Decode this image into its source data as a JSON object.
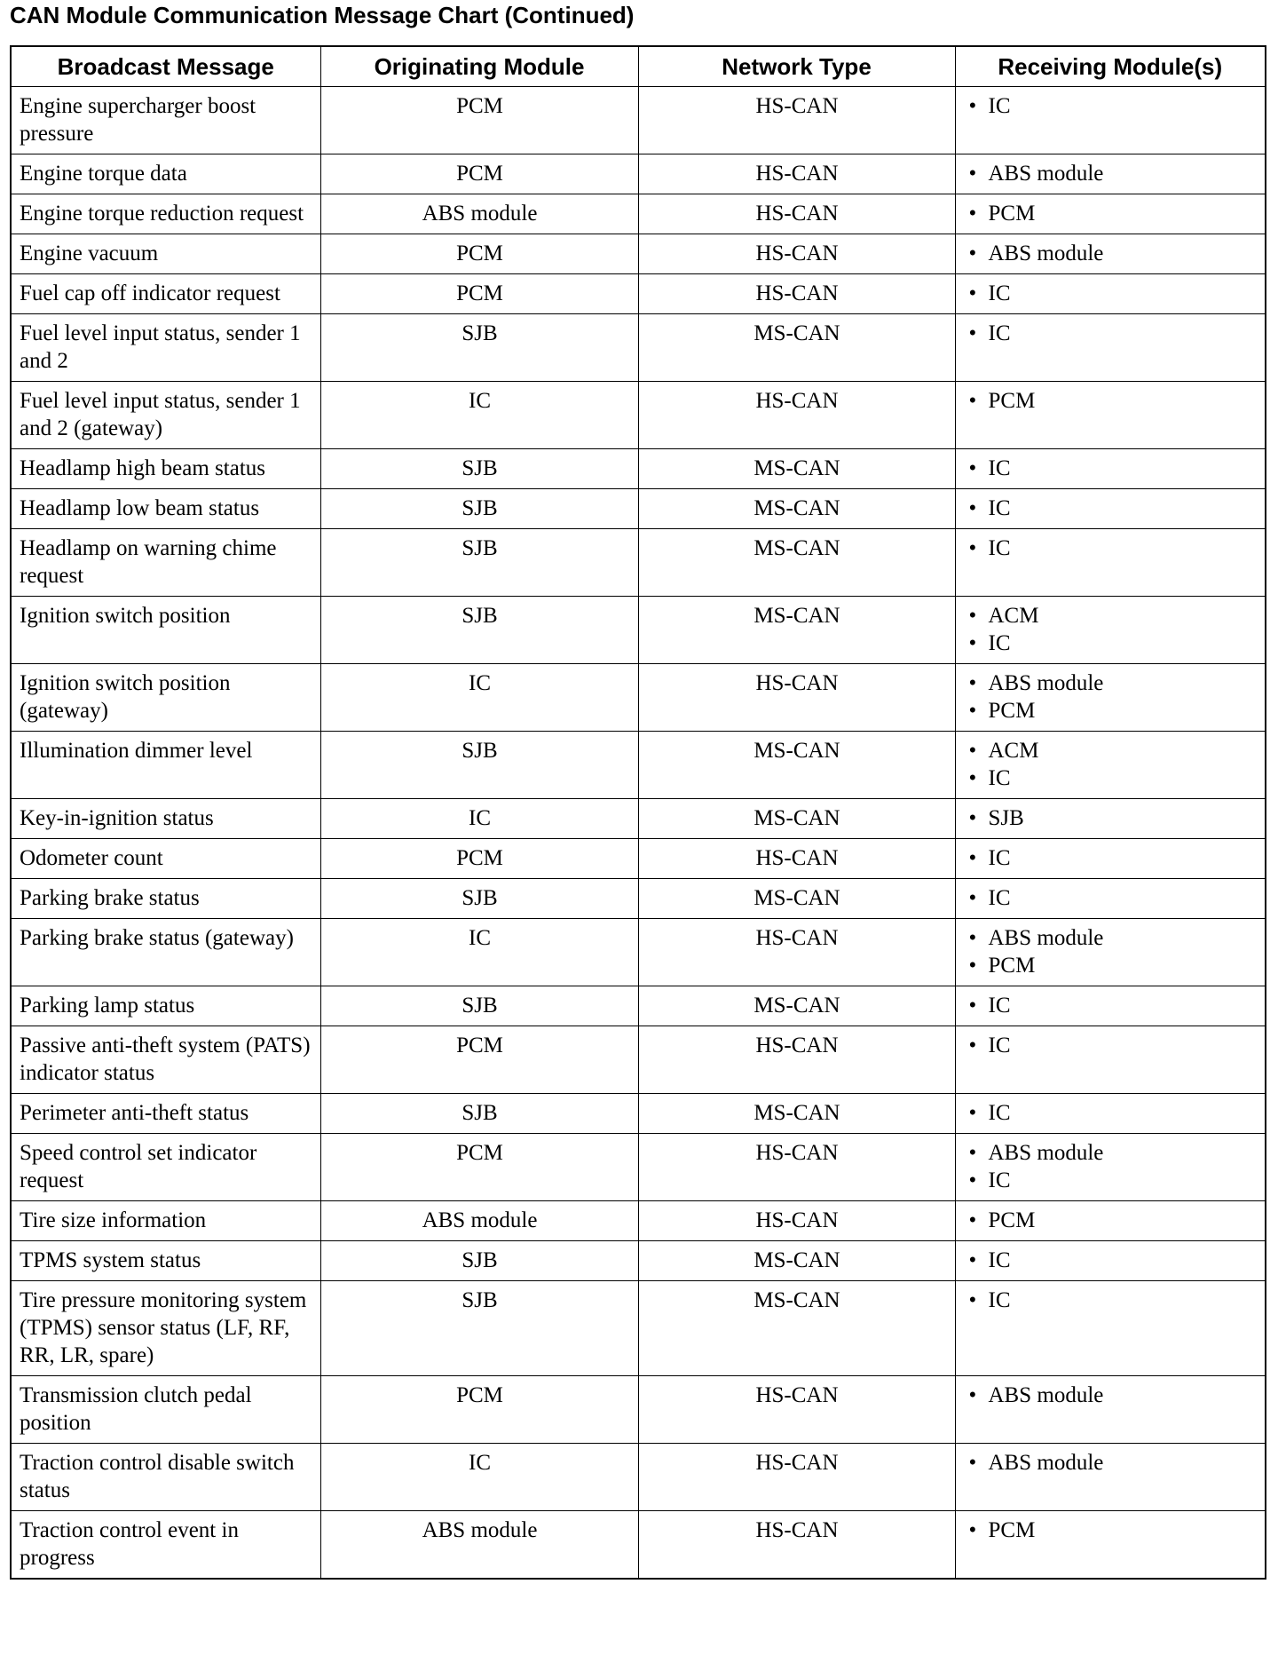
{
  "title": "CAN Module Communication Message Chart (Continued)",
  "table": {
    "header": [
      "Broadcast Message",
      "Originating Module",
      "Network Type",
      "Receiving Module(s)"
    ],
    "rows": [
      [
        "Engine supercharger boost pressure",
        "PCM",
        "HS-CAN",
        [
          "IC"
        ]
      ],
      [
        "Engine torque data",
        "PCM",
        "HS-CAN",
        [
          "ABS module"
        ]
      ],
      [
        "Engine torque reduction request",
        "ABS module",
        "HS-CAN",
        [
          "PCM"
        ]
      ],
      [
        "Engine vacuum",
        "PCM",
        "HS-CAN",
        [
          "ABS module"
        ]
      ],
      [
        "Fuel cap off indicator request",
        "PCM",
        "HS-CAN",
        [
          "IC"
        ]
      ],
      [
        "Fuel level input status, sender 1 and 2",
        "SJB",
        "MS-CAN",
        [
          "IC"
        ]
      ],
      [
        "Fuel level input status, sender 1 and 2 (gateway)",
        "IC",
        "HS-CAN",
        [
          "PCM"
        ]
      ],
      [
        "Headlamp high beam status",
        "SJB",
        "MS-CAN",
        [
          "IC"
        ]
      ],
      [
        "Headlamp low beam status",
        "SJB",
        "MS-CAN",
        [
          "IC"
        ]
      ],
      [
        "Headlamp on warning chime request",
        "SJB",
        "MS-CAN",
        [
          "IC"
        ]
      ],
      [
        "Ignition switch position",
        "SJB",
        "MS-CAN",
        [
          "ACM",
          "IC"
        ]
      ],
      [
        "Ignition switch position (gateway)",
        "IC",
        "HS-CAN",
        [
          "ABS module",
          "PCM"
        ]
      ],
      [
        "Illumination dimmer level",
        "SJB",
        "MS-CAN",
        [
          "ACM",
          "IC"
        ]
      ],
      [
        "Key-in-ignition status",
        "IC",
        "MS-CAN",
        [
          "SJB"
        ]
      ],
      [
        "Odometer count",
        "PCM",
        "HS-CAN",
        [
          "IC"
        ]
      ],
      [
        "Parking brake status",
        "SJB",
        "MS-CAN",
        [
          "IC"
        ]
      ],
      [
        "Parking brake status (gateway)",
        "IC",
        "HS-CAN",
        [
          "ABS module",
          "PCM"
        ]
      ],
      [
        "Parking lamp status",
        "SJB",
        "MS-CAN",
        [
          "IC"
        ]
      ],
      [
        "Passive anti-theft system (PATS) indicator status",
        "PCM",
        "HS-CAN",
        [
          "IC"
        ]
      ],
      [
        "Perimeter anti-theft status",
        "SJB",
        "MS-CAN",
        [
          "IC"
        ]
      ],
      [
        "Speed control set indicator request",
        "PCM",
        "HS-CAN",
        [
          "ABS module",
          "IC"
        ]
      ],
      [
        "Tire size information",
        "ABS module",
        "HS-CAN",
        [
          "PCM"
        ]
      ],
      [
        "TPMS system status",
        "SJB",
        "MS-CAN",
        [
          "IC"
        ]
      ],
      [
        "Tire pressure monitoring system (TPMS) sensor status (LF, RF, RR, LR, spare)",
        "SJB",
        "MS-CAN",
        [
          "IC"
        ]
      ],
      [
        "Transmission clutch pedal position",
        "PCM",
        "HS-CAN",
        [
          "ABS module"
        ]
      ],
      [
        "Traction control disable switch status",
        "IC",
        "HS-CAN",
        [
          "ABS module"
        ]
      ],
      [
        "Traction control event in progress",
        "ABS module",
        "HS-CAN",
        [
          "PCM"
        ]
      ]
    ]
  }
}
